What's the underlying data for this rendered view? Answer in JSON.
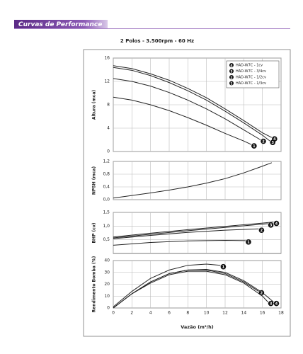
{
  "header": {
    "title": "Curvas de Performance"
  },
  "chart_data": [
    {
      "type": "line",
      "title": "2 Polos - 3.500rpm - 60 Hz",
      "ylabel": "Altura (mca)",
      "color": "#222",
      "grid": true,
      "legend": "upper right",
      "xlim": [
        0,
        18
      ],
      "ylim": [
        0,
        16
      ],
      "yticks": [
        0,
        4,
        8,
        12,
        16
      ],
      "series": [
        {
          "name": "HAD-W7C - 1cv",
          "label": "4",
          "x": [
            0,
            2,
            4,
            6,
            8,
            10,
            12,
            14,
            16,
            17
          ],
          "values": [
            14.7,
            14.2,
            13.3,
            12.2,
            10.8,
            9.2,
            7.3,
            5.3,
            3.2,
            2.4
          ]
        },
        {
          "name": "HAD-W7C - 3/4cv",
          "label": "3",
          "x": [
            0,
            2,
            4,
            6,
            8,
            10,
            12,
            14,
            16,
            16.8
          ],
          "values": [
            14.4,
            13.9,
            13.0,
            11.8,
            10.4,
            8.8,
            6.9,
            4.9,
            2.8,
            1.8
          ]
        },
        {
          "name": "HAD-W7C - 1/2cv",
          "label": "2",
          "x": [
            0,
            2,
            4,
            6,
            8,
            10,
            12,
            14,
            15.8
          ],
          "values": [
            12.5,
            12.0,
            11.2,
            10.1,
            8.8,
            7.3,
            5.6,
            3.7,
            2.0
          ]
        },
        {
          "name": "HAD-W7C - 1/3cv",
          "label": "1",
          "x": [
            0,
            2,
            4,
            6,
            8,
            10,
            12,
            14,
            14.8
          ],
          "values": [
            9.3,
            8.8,
            8.0,
            7.0,
            5.8,
            4.5,
            3.1,
            1.8,
            1.2
          ]
        }
      ]
    },
    {
      "type": "line",
      "ylabel": "NPSH (mca)",
      "color": "#222",
      "grid": true,
      "xlim": [
        0,
        18
      ],
      "ylim": [
        0,
        1.2
      ],
      "yticks": [
        {
          "value": 0,
          "label": "0,0"
        },
        {
          "value": 0.4,
          "label": "0,4"
        },
        {
          "value": 0.8,
          "label": "0,8"
        },
        {
          "value": 1.2,
          "label": "1,2"
        }
      ],
      "series": [
        {
          "x": [
            0,
            2,
            4,
            6,
            8,
            10,
            12,
            14,
            16,
            17
          ],
          "values": [
            0.05,
            0.13,
            0.21,
            0.3,
            0.4,
            0.52,
            0.66,
            0.84,
            1.05,
            1.16
          ]
        }
      ]
    },
    {
      "type": "line",
      "ylabel": "BHP (cv)",
      "color": "#222",
      "grid": true,
      "xlim": [
        0,
        18
      ],
      "ylim": [
        0,
        1.5
      ],
      "yticks": [
        {
          "value": 0.5,
          "label": "0,5"
        },
        {
          "value": 1,
          "label": "1,0"
        },
        {
          "value": 1.5,
          "label": "1,5"
        }
      ],
      "series": [
        {
          "label": "4",
          "x": [
            0,
            4,
            8,
            12,
            16,
            17.2
          ],
          "values": [
            0.6,
            0.74,
            0.87,
            0.99,
            1.11,
            1.15
          ]
        },
        {
          "label": "3",
          "x": [
            0,
            4,
            8,
            12,
            16,
            16.6
          ],
          "values": [
            0.57,
            0.7,
            0.83,
            0.95,
            1.07,
            1.09
          ]
        },
        {
          "label": "2",
          "x": [
            0,
            4,
            8,
            12,
            15.6
          ],
          "values": [
            0.54,
            0.66,
            0.77,
            0.85,
            0.9
          ]
        },
        {
          "label": "1",
          "x": [
            0,
            4,
            8,
            12,
            14.2
          ],
          "values": [
            0.3,
            0.4,
            0.46,
            0.48,
            0.47
          ]
        }
      ]
    },
    {
      "type": "line",
      "ylabel": "Rendimento Bomba (%)",
      "xlabel": "Vazão (m³/h)",
      "color": "#222",
      "grid": true,
      "xlim": [
        0,
        18
      ],
      "ylim": [
        0,
        40
      ],
      "yticks": [
        0,
        10,
        20,
        30,
        40
      ],
      "xticks": [
        0,
        2,
        4,
        6,
        8,
        10,
        12,
        14,
        16,
        18
      ],
      "series": [
        {
          "label": "4",
          "x": [
            0,
            2,
            4,
            6,
            8,
            10,
            12,
            14,
            16,
            17.2
          ],
          "values": [
            0,
            12,
            22,
            29,
            32,
            32.5,
            30,
            23,
            13,
            5
          ]
        },
        {
          "label": "3",
          "x": [
            0,
            2,
            4,
            6,
            8,
            10,
            12,
            14,
            16,
            16.6
          ],
          "values": [
            0,
            12,
            21,
            28,
            31,
            31,
            28,
            21,
            10,
            5
          ]
        },
        {
          "label": "2",
          "x": [
            0,
            2,
            4,
            6,
            8,
            10,
            12,
            14,
            15.6
          ],
          "values": [
            0,
            12,
            22,
            29,
            32,
            32,
            29,
            22,
            14
          ]
        },
        {
          "label": "1",
          "x": [
            0,
            2,
            4,
            6,
            8,
            10,
            11.5
          ],
          "values": [
            1,
            14,
            25,
            32,
            36,
            37,
            36
          ]
        }
      ]
    }
  ]
}
